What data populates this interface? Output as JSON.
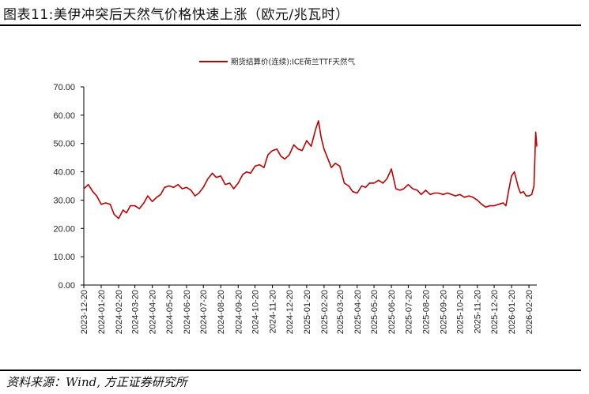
{
  "title": "图表11:美伊冲突后天然气价格快速上涨（欧元/兆瓦时）",
  "source": "资料来源：Wind, 方正证券研究所",
  "colors": {
    "series": "#c00000",
    "axis": "#000000"
  },
  "chart_data": {
    "type": "line",
    "title": "图表11:美伊冲突后天然气价格快速上涨（欧元/兆瓦时）",
    "xlabel": "",
    "ylabel": "",
    "ylim": [
      0,
      70
    ],
    "yticks": [
      "0.00",
      "10.00",
      "20.00",
      "30.00",
      "40.00",
      "50.00",
      "60.00",
      "70.00"
    ],
    "xticks": [
      "2023-12-20",
      "2024-01-20",
      "2024-02-20",
      "2024-03-20",
      "2024-04-20",
      "2024-05-20",
      "2024-06-20",
      "2024-07-20",
      "2024-08-20",
      "2024-09-20",
      "2024-10-20",
      "2024-11-20",
      "2024-12-20",
      "2025-01-20",
      "2025-02-20",
      "2025-03-20",
      "2025-04-20",
      "2025-05-20",
      "2025-06-20",
      "2025-07-20",
      "2025-08-20",
      "2025-09-20",
      "2025-10-20",
      "2025-11-20",
      "2025-12-20",
      "2026-01-20",
      "2026-02-20"
    ],
    "legend": "top-center",
    "grid": false,
    "series": [
      {
        "name": "期货结算价(连续):ICE荷兰TTF天然气",
        "x": [
          "2023-12-20",
          "2023-12-28",
          "2024-01-05",
          "2024-01-12",
          "2024-01-20",
          "2024-01-28",
          "2024-02-05",
          "2024-02-12",
          "2024-02-20",
          "2024-02-28",
          "2024-03-05",
          "2024-03-12",
          "2024-03-20",
          "2024-03-28",
          "2024-04-05",
          "2024-04-12",
          "2024-04-20",
          "2024-04-28",
          "2024-05-05",
          "2024-05-12",
          "2024-05-20",
          "2024-05-28",
          "2024-06-05",
          "2024-06-12",
          "2024-06-20",
          "2024-06-28",
          "2024-07-05",
          "2024-07-12",
          "2024-07-20",
          "2024-07-28",
          "2024-08-05",
          "2024-08-12",
          "2024-08-20",
          "2024-08-28",
          "2024-09-05",
          "2024-09-12",
          "2024-09-20",
          "2024-09-28",
          "2024-10-05",
          "2024-10-12",
          "2024-10-20",
          "2024-10-28",
          "2024-11-05",
          "2024-11-12",
          "2024-11-20",
          "2024-11-28",
          "2024-12-05",
          "2024-12-12",
          "2024-12-20",
          "2024-12-28",
          "2025-01-05",
          "2025-01-12",
          "2025-01-20",
          "2025-01-28",
          "2025-02-05",
          "2025-02-10",
          "2025-02-15",
          "2025-02-20",
          "2025-02-28",
          "2025-03-05",
          "2025-03-12",
          "2025-03-20",
          "2025-03-28",
          "2025-04-05",
          "2025-04-12",
          "2025-04-20",
          "2025-04-28",
          "2025-05-05",
          "2025-05-12",
          "2025-05-20",
          "2025-05-28",
          "2025-06-05",
          "2025-06-12",
          "2025-06-20",
          "2025-06-28",
          "2025-07-05",
          "2025-07-12",
          "2025-07-20",
          "2025-07-28",
          "2025-08-05",
          "2025-08-12",
          "2025-08-20",
          "2025-08-28",
          "2025-09-05",
          "2025-09-12",
          "2025-09-20",
          "2025-09-28",
          "2025-10-05",
          "2025-10-12",
          "2025-10-20",
          "2025-10-28",
          "2025-11-05",
          "2025-11-12",
          "2025-11-20",
          "2025-11-28",
          "2025-12-05",
          "2025-12-12",
          "2025-12-20",
          "2025-12-28",
          "2026-01-05",
          "2026-01-10",
          "2026-01-15",
          "2026-01-20",
          "2026-01-25",
          "2026-02-01",
          "2026-02-05",
          "2026-02-10",
          "2026-02-15",
          "2026-02-20",
          "2026-02-25",
          "2026-03-01",
          "2026-03-04",
          "2026-03-06"
        ],
        "values": [
          34.0,
          35.5,
          33.0,
          31.5,
          28.5,
          29.0,
          28.5,
          25.0,
          23.5,
          26.5,
          25.5,
          28.0,
          28.0,
          27.0,
          29.0,
          31.5,
          29.5,
          31.0,
          32.0,
          34.5,
          35.0,
          34.5,
          35.5,
          34.0,
          34.5,
          33.5,
          31.5,
          32.5,
          34.5,
          37.5,
          39.5,
          38.0,
          38.5,
          35.5,
          36.0,
          34.0,
          36.0,
          39.0,
          40.0,
          39.5,
          42.0,
          42.5,
          41.5,
          46.0,
          47.5,
          48.0,
          45.5,
          44.5,
          46.0,
          49.5,
          48.0,
          47.5,
          51.0,
          49.0,
          55.0,
          58.0,
          52.0,
          48.0,
          44.0,
          41.5,
          43.0,
          42.0,
          36.0,
          35.0,
          33.0,
          32.5,
          35.0,
          34.5,
          36.0,
          36.0,
          37.0,
          36.0,
          37.5,
          41.0,
          34.0,
          33.5,
          34.0,
          35.5,
          34.0,
          33.5,
          32.0,
          33.5,
          32.0,
          32.5,
          32.5,
          32.0,
          32.5,
          32.0,
          31.5,
          32.0,
          31.0,
          31.5,
          31.0,
          30.0,
          28.5,
          27.5,
          28.0,
          28.0,
          28.5,
          29.0,
          28.0,
          33.5,
          38.5,
          40.0,
          34.5,
          32.5,
          33.0,
          31.5,
          31.5,
          32.0,
          35.0,
          54.0,
          49.0
        ]
      }
    ]
  }
}
